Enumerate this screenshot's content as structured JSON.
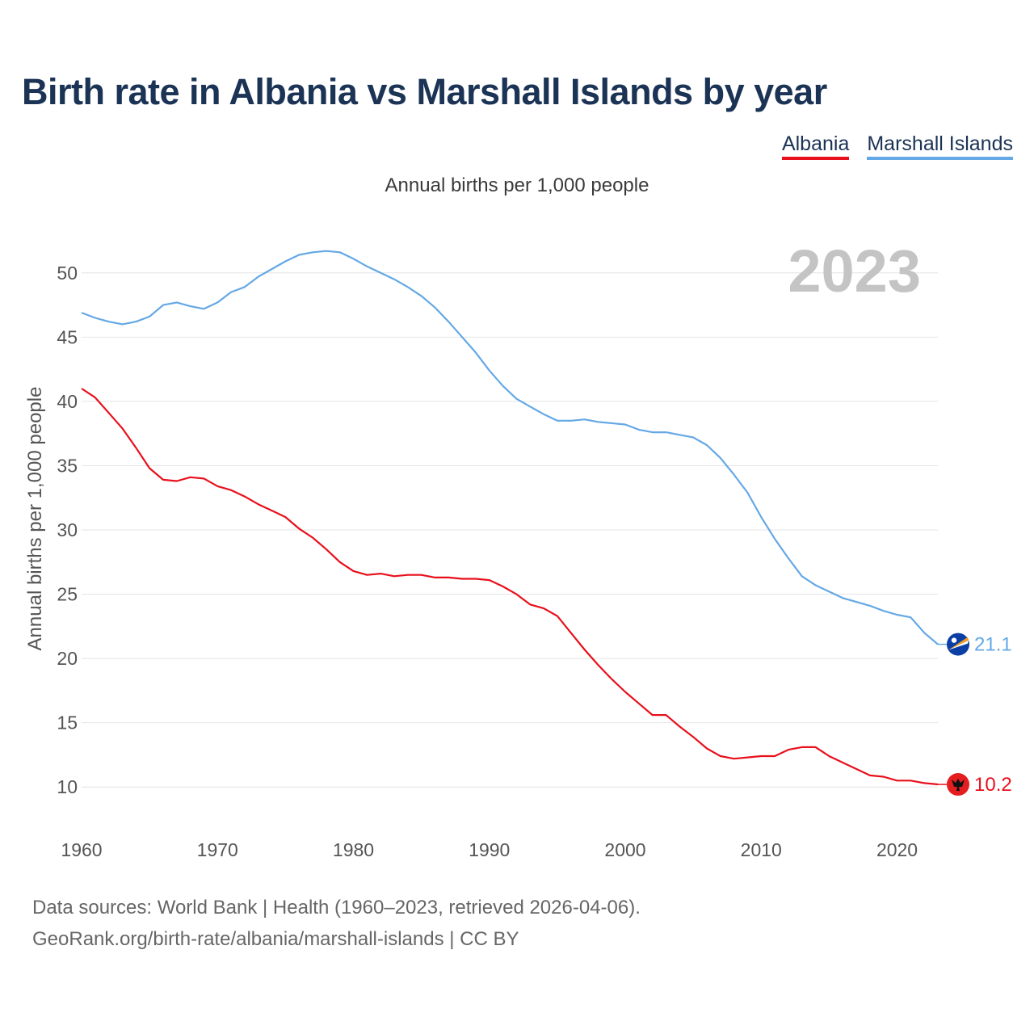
{
  "title": "Birth rate in Albania vs Marshall Islands by year",
  "subtitle": "Annual births per 1,000 people",
  "legend": [
    "Albania",
    "Marshall Islands"
  ],
  "footer": {
    "line1": "Data sources: World Bank | Health (1960–2023, retrieved 2026-04-06).",
    "line2": "GeoRank.org/birth-rate/albania/marshall-islands | CC BY"
  },
  "chart_data": {
    "type": "line",
    "ylabel": "Annual births per 1,000 people",
    "xlabel": "",
    "year_label": "2023",
    "xlim": [
      1960,
      2023
    ],
    "ylim": [
      7.5,
      52.5
    ],
    "x_ticks": [
      1960,
      1970,
      1980,
      1990,
      2000,
      2010,
      2020
    ],
    "y_ticks": [
      10,
      15,
      20,
      25,
      30,
      35,
      40,
      45,
      50
    ],
    "x": [
      1960,
      1961,
      1962,
      1963,
      1964,
      1965,
      1966,
      1967,
      1968,
      1969,
      1970,
      1971,
      1972,
      1973,
      1974,
      1975,
      1976,
      1977,
      1978,
      1979,
      1980,
      1981,
      1982,
      1983,
      1984,
      1985,
      1986,
      1987,
      1988,
      1989,
      1990,
      1991,
      1992,
      1993,
      1994,
      1995,
      1996,
      1997,
      1998,
      1999,
      2000,
      2001,
      2002,
      2003,
      2004,
      2005,
      2006,
      2007,
      2008,
      2009,
      2010,
      2011,
      2012,
      2013,
      2014,
      2015,
      2016,
      2017,
      2018,
      2019,
      2020,
      2021,
      2022,
      2023
    ],
    "series": [
      {
        "name": "Albania",
        "color": "#e8101c",
        "end_label": "10.2",
        "values": [
          41.0,
          40.3,
          39.1,
          37.9,
          36.4,
          34.8,
          33.9,
          33.8,
          34.1,
          34.0,
          33.4,
          33.1,
          32.6,
          32.0,
          31.5,
          31.0,
          30.1,
          29.4,
          28.5,
          27.5,
          26.8,
          26.5,
          26.6,
          26.4,
          26.5,
          26.5,
          26.3,
          26.3,
          26.2,
          26.2,
          26.1,
          25.6,
          25.0,
          24.2,
          23.9,
          23.3,
          22.0,
          20.7,
          19.5,
          18.4,
          17.4,
          16.5,
          15.6,
          15.6,
          14.7,
          13.9,
          13.0,
          12.4,
          12.2,
          12.3,
          12.4,
          12.4,
          12.9,
          13.1,
          13.1,
          12.4,
          11.9,
          11.4,
          10.9,
          10.8,
          10.5,
          10.5,
          10.3,
          10.2
        ]
      },
      {
        "name": "Marshall Islands",
        "color": "#64a8e6",
        "end_label": "21.1",
        "values": [
          46.9,
          46.5,
          46.2,
          46.0,
          46.2,
          46.6,
          47.5,
          47.7,
          47.4,
          47.2,
          47.7,
          48.5,
          48.9,
          49.7,
          50.3,
          50.9,
          51.4,
          51.6,
          51.7,
          51.6,
          51.1,
          50.5,
          50.0,
          49.5,
          48.9,
          48.2,
          47.3,
          46.2,
          45.0,
          43.8,
          42.4,
          41.2,
          40.2,
          39.6,
          39.0,
          38.5,
          38.5,
          38.6,
          38.4,
          38.3,
          38.2,
          37.8,
          37.6,
          37.6,
          37.4,
          37.2,
          36.6,
          35.6,
          34.3,
          32.9,
          31.0,
          29.3,
          27.8,
          26.4,
          25.7,
          25.2,
          24.7,
          24.4,
          24.1,
          23.7,
          23.4,
          23.2,
          22.0,
          21.1
        ]
      }
    ]
  }
}
